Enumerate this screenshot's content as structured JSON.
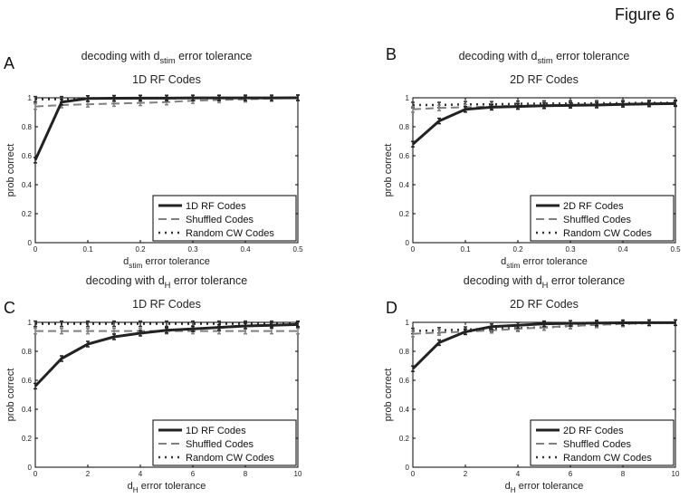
{
  "figure_title": "Figure 6",
  "chart_data": [
    {
      "panel": "A",
      "type": "line",
      "title_line1": {
        "pre": "decoding with d",
        "sub": "stim",
        "post": " error tolerance"
      },
      "title_line2": "1D RF Codes",
      "xlabel": {
        "pre": "d",
        "sub": "stim",
        "post": " error tolerance"
      },
      "ylabel": "prob correct",
      "xlim": [
        0,
        0.5
      ],
      "ylim": [
        0,
        1
      ],
      "xticks": [
        "0",
        "0.1",
        "0.2",
        "0.3",
        "0.4",
        "0.5"
      ],
      "yticks": [
        "0",
        "0.2",
        "0.4",
        "0.6",
        "0.8",
        "1"
      ],
      "x": [
        0,
        0.05,
        0.1,
        0.15,
        0.2,
        0.25,
        0.3,
        0.35,
        0.4,
        0.45,
        0.5
      ],
      "legend_position": "bottom-right",
      "series": [
        {
          "name": "1D RF Codes",
          "style": "solid",
          "values": [
            0.57,
            0.97,
            0.995,
            0.997,
            0.998,
            0.998,
            0.999,
            0.999,
            0.999,
            0.999,
            1.0
          ]
        },
        {
          "name": "Shuffled Codes",
          "style": "dashed",
          "values": [
            0.94,
            0.95,
            0.955,
            0.96,
            0.965,
            0.97,
            0.98,
            0.985,
            0.99,
            0.995,
            1.0
          ]
        },
        {
          "name": "Random CW Codes",
          "style": "dotted",
          "values": [
            0.99,
            0.99,
            0.995,
            0.995,
            0.997,
            0.997,
            0.998,
            0.998,
            0.999,
            0.999,
            1.0
          ]
        }
      ]
    },
    {
      "panel": "B",
      "type": "line",
      "title_line1": {
        "pre": "decoding with d",
        "sub": "stim",
        "post": " error tolerance"
      },
      "title_line2": "2D RF Codes",
      "xlabel": {
        "pre": "d",
        "sub": "stim",
        "post": " error tolerance"
      },
      "ylabel": "prob correct",
      "xlim": [
        0,
        0.5
      ],
      "ylim": [
        0,
        1
      ],
      "xticks": [
        "0",
        "0.1",
        "0.2",
        "0.3",
        "0.4",
        "0.5"
      ],
      "yticks": [
        "0",
        "0.2",
        "0.4",
        "0.6",
        "0.8",
        "1"
      ],
      "x": [
        0,
        0.05,
        0.1,
        0.15,
        0.2,
        0.25,
        0.3,
        0.35,
        0.4,
        0.45,
        0.5
      ],
      "legend_position": "bottom-right",
      "series": [
        {
          "name": "2D RF Codes",
          "style": "solid",
          "values": [
            0.68,
            0.84,
            0.92,
            0.935,
            0.94,
            0.945,
            0.948,
            0.95,
            0.955,
            0.958,
            0.96
          ]
        },
        {
          "name": "Shuffled Codes",
          "style": "dashed",
          "values": [
            0.92,
            0.93,
            0.935,
            0.94,
            0.945,
            0.95,
            0.952,
            0.955,
            0.958,
            0.96,
            0.96
          ]
        },
        {
          "name": "Random CW Codes",
          "style": "dotted",
          "values": [
            0.95,
            0.95,
            0.955,
            0.955,
            0.958,
            0.96,
            0.96,
            0.962,
            0.963,
            0.965,
            0.965
          ]
        }
      ]
    },
    {
      "panel": "C",
      "type": "line",
      "title_line1": {
        "pre": "decoding with d",
        "sub": "H",
        "post": " error tolerance"
      },
      "title_line2": "1D RF Codes",
      "xlabel": {
        "pre": "d",
        "sub": "H",
        "post": " error tolerance"
      },
      "ylabel": "prob correct",
      "xlim": [
        0,
        10
      ],
      "ylim": [
        0,
        1
      ],
      "xticks": [
        "0",
        "2",
        "4",
        "6",
        "8",
        "10"
      ],
      "yticks": [
        "0",
        "0.2",
        "0.4",
        "0.6",
        "0.8",
        "1"
      ],
      "x": [
        0,
        1,
        2,
        3,
        4,
        5,
        6,
        7,
        8,
        9,
        10
      ],
      "legend_position": "bottom-right",
      "series": [
        {
          "name": "1D RF Codes",
          "style": "solid",
          "values": [
            0.56,
            0.75,
            0.85,
            0.9,
            0.925,
            0.945,
            0.955,
            0.965,
            0.975,
            0.98,
            0.985
          ]
        },
        {
          "name": "Shuffled Codes",
          "style": "dashed",
          "values": [
            0.94,
            0.94,
            0.94,
            0.94,
            0.94,
            0.94,
            0.94,
            0.94,
            0.94,
            0.94,
            0.94
          ]
        },
        {
          "name": "Random CW Codes",
          "style": "dotted",
          "values": [
            0.99,
            0.99,
            0.99,
            0.99,
            0.99,
            0.99,
            0.99,
            0.99,
            0.99,
            0.99,
            0.99
          ]
        }
      ]
    },
    {
      "panel": "D",
      "type": "line",
      "title_line1": {
        "pre": "decoding with d",
        "sub": "H",
        "post": " error tolerance"
      },
      "title_line2": "2D RF Codes",
      "xlabel": {
        "pre": "d",
        "sub": "H",
        "post": " error tolerance"
      },
      "ylabel": "prob correct",
      "xlim": [
        0,
        10
      ],
      "ylim": [
        0,
        1
      ],
      "xticks": [
        "0",
        "2",
        "4",
        "6",
        "8",
        "10"
      ],
      "yticks": [
        "0",
        "0.2",
        "0.4",
        "0.6",
        "0.8",
        "1"
      ],
      "x": [
        0,
        1,
        2,
        3,
        4,
        5,
        6,
        7,
        8,
        9,
        10
      ],
      "legend_position": "bottom-right",
      "series": [
        {
          "name": "2D RF Codes",
          "style": "solid",
          "values": [
            0.68,
            0.86,
            0.935,
            0.97,
            0.98,
            0.99,
            0.993,
            0.995,
            0.997,
            0.998,
            0.998
          ]
        },
        {
          "name": "Shuffled Codes",
          "style": "dashed",
          "values": [
            0.92,
            0.93,
            0.935,
            0.945,
            0.955,
            0.965,
            0.975,
            0.982,
            0.99,
            0.995,
            0.998
          ]
        },
        {
          "name": "Random CW Codes",
          "style": "dotted",
          "values": [
            0.94,
            0.945,
            0.95,
            0.955,
            0.96,
            0.965,
            0.975,
            0.985,
            0.99,
            0.995,
            0.998
          ]
        }
      ]
    }
  ]
}
